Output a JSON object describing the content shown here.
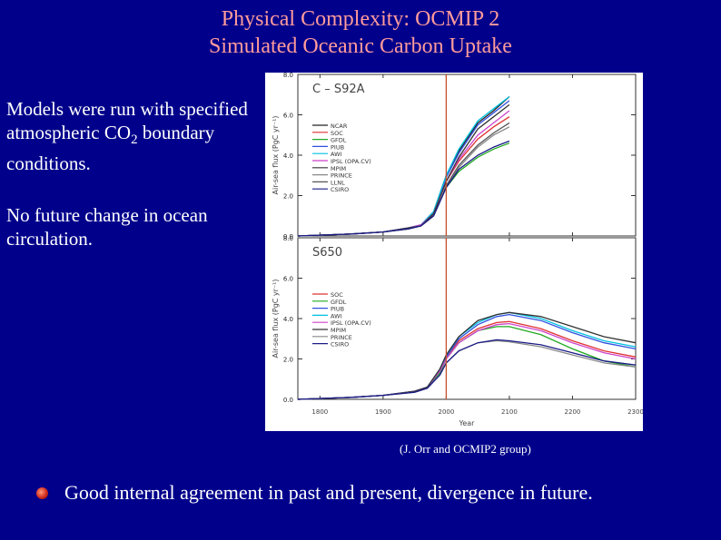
{
  "slide": {
    "title_line1": "Physical Complexity: OCMIP 2",
    "title_line2": "Simulated Oceanic Carbon Uptake",
    "text1_a": "Models were run with specified atmospheric CO",
    "text1_sub": "2",
    "text1_b": " boundary conditions.",
    "text2": "No future change in ocean circulation.",
    "caption": "(J. Orr and OCMIP2 group)",
    "bullet": "Good internal agreement in past and present, divergence in future."
  },
  "colors": {
    "background": "#00008b",
    "title": "#ff9b9b",
    "marker_line": "#c8502a"
  },
  "chart_data": [
    {
      "type": "line",
      "title": "C – S92A",
      "ylabel": "Air-sea flux (PgC yr⁻¹)",
      "ylim": [
        0,
        8
      ],
      "yticks": [
        "0.0",
        "2.0",
        "4.0",
        "6.0",
        "8.0"
      ],
      "xlim": [
        1765,
        2300
      ],
      "marker_year": 2000,
      "legend": [
        "NCAR",
        "SOC",
        "GFDL",
        "PIUB",
        "AWI",
        "IPSL (OPA.CV)",
        "MPIM",
        "PRINCE",
        "LLNL",
        "CSIRO"
      ],
      "series": [
        {
          "name": "NCAR",
          "color": "#222222",
          "x": [
            1765,
            1850,
            1900,
            1940,
            1960,
            1980,
            1990,
            2000,
            2020,
            2050,
            2075,
            2100
          ],
          "y": [
            0,
            0.1,
            0.2,
            0.4,
            0.55,
            1.2,
            2.1,
            3.0,
            4.2,
            5.6,
            6.2,
            6.9
          ]
        },
        {
          "name": "SOC",
          "color": "#e03030",
          "x": [
            1765,
            1850,
            1900,
            1940,
            1960,
            1980,
            1990,
            2000,
            2020,
            2050,
            2075,
            2100
          ],
          "y": [
            0,
            0.1,
            0.2,
            0.4,
            0.5,
            1.1,
            1.9,
            2.7,
            3.7,
            4.8,
            5.4,
            5.9
          ]
        },
        {
          "name": "GFDL",
          "color": "#22aa22",
          "x": [
            1765,
            1850,
            1900,
            1940,
            1960,
            1980,
            1990,
            2000,
            2020,
            2050,
            2075,
            2100
          ],
          "y": [
            0,
            0.1,
            0.2,
            0.35,
            0.5,
            1.0,
            1.7,
            2.4,
            3.2,
            3.9,
            4.3,
            4.6
          ]
        },
        {
          "name": "PIUB",
          "color": "#3050e0",
          "x": [
            1765,
            1850,
            1900,
            1940,
            1960,
            1980,
            1990,
            2000,
            2020,
            2050,
            2075,
            2100
          ],
          "y": [
            0,
            0.1,
            0.2,
            0.4,
            0.55,
            1.2,
            2.0,
            2.9,
            4.1,
            5.5,
            6.1,
            6.7
          ]
        },
        {
          "name": "AWI",
          "color": "#00c0e0",
          "x": [
            1765,
            1850,
            1900,
            1940,
            1960,
            1980,
            1990,
            2000,
            2020,
            2050,
            2075,
            2100
          ],
          "y": [
            0,
            0.1,
            0.2,
            0.4,
            0.55,
            1.2,
            2.1,
            3.0,
            4.3,
            5.7,
            6.3,
            6.9
          ]
        },
        {
          "name": "IPSL (OPA.CV)",
          "color": "#cc44cc",
          "x": [
            1765,
            1850,
            1900,
            1940,
            1960,
            1980,
            1990,
            2000,
            2020,
            2050,
            2075,
            2100
          ],
          "y": [
            0,
            0.1,
            0.2,
            0.4,
            0.55,
            1.1,
            1.9,
            2.7,
            3.8,
            5.0,
            5.6,
            6.2
          ]
        },
        {
          "name": "MPIM",
          "color": "#333333",
          "x": [
            1765,
            1850,
            1900,
            1940,
            1960,
            1980,
            1990,
            2000,
            2020,
            2050,
            2075,
            2100
          ],
          "y": [
            0,
            0.1,
            0.2,
            0.4,
            0.5,
            1.1,
            1.9,
            2.7,
            3.9,
            5.3,
            5.9,
            6.5
          ]
        },
        {
          "name": "PRINCE",
          "color": "#888888",
          "x": [
            1765,
            1850,
            1900,
            1940,
            1960,
            1980,
            1990,
            2000,
            2020,
            2050,
            2075,
            2100
          ],
          "y": [
            0,
            0.1,
            0.2,
            0.35,
            0.5,
            1.0,
            1.7,
            2.4,
            3.4,
            4.4,
            5.0,
            5.4
          ]
        },
        {
          "name": "LLNL",
          "color": "#555555",
          "x": [
            1765,
            1850,
            1900,
            1940,
            1960,
            1980,
            1990,
            2000,
            2020,
            2050,
            2075,
            2100
          ],
          "y": [
            0,
            0.1,
            0.2,
            0.35,
            0.5,
            1.0,
            1.7,
            2.5,
            3.5,
            4.5,
            5.1,
            5.6
          ]
        },
        {
          "name": "CSIRO",
          "color": "#1a1a88",
          "x": [
            1765,
            1850,
            1900,
            1940,
            1960,
            1980,
            1990,
            2000,
            2020,
            2050,
            2075,
            2100
          ],
          "y": [
            0,
            0.1,
            0.2,
            0.35,
            0.5,
            1.0,
            1.7,
            2.4,
            3.3,
            4.0,
            4.4,
            4.7
          ]
        }
      ]
    },
    {
      "type": "line",
      "title": "S650",
      "ylabel": "Air-sea flux (PgC yr⁻¹)",
      "xlabel": "Year",
      "ylim": [
        0,
        8
      ],
      "yticks": [
        "0.0",
        "2.0",
        "4.0",
        "6.0",
        "8.0"
      ],
      "xlim": [
        1765,
        2300
      ],
      "xticks": [
        "1800",
        "1900",
        "2000",
        "2100",
        "2200",
        "2300"
      ],
      "marker_year": 2000,
      "legend": [
        "SOC",
        "GFDL",
        "PIUB",
        "AWI",
        "IPSL (OPA.CV)",
        "MPIM",
        "PRINCE",
        "CSIRO"
      ],
      "series": [
        {
          "name": "SOC",
          "color": "#e03030",
          "x": [
            1765,
            1850,
            1900,
            1950,
            1970,
            1990,
            2000,
            2020,
            2050,
            2080,
            2100,
            2150,
            2200,
            2250,
            2300
          ],
          "y": [
            0,
            0.1,
            0.2,
            0.4,
            0.6,
            1.4,
            2.1,
            2.9,
            3.5,
            3.8,
            3.85,
            3.5,
            2.9,
            2.4,
            2.1
          ]
        },
        {
          "name": "GFDL",
          "color": "#22aa22",
          "x": [
            1765,
            1850,
            1900,
            1950,
            1970,
            1990,
            2000,
            2020,
            2050,
            2080,
            2100,
            2150,
            2200,
            2250,
            2300
          ],
          "y": [
            0,
            0.1,
            0.2,
            0.4,
            0.6,
            1.3,
            2.0,
            2.8,
            3.4,
            3.6,
            3.6,
            3.2,
            2.5,
            1.9,
            1.6
          ]
        },
        {
          "name": "PIUB",
          "color": "#3050e0",
          "x": [
            1765,
            1850,
            1900,
            1950,
            1970,
            1990,
            2000,
            2020,
            2050,
            2080,
            2100,
            2150,
            2200,
            2250,
            2300
          ],
          "y": [
            0,
            0.1,
            0.2,
            0.4,
            0.6,
            1.4,
            2.1,
            3.0,
            3.7,
            4.1,
            4.2,
            3.9,
            3.3,
            2.8,
            2.5
          ]
        },
        {
          "name": "AWI",
          "color": "#00c0e0",
          "x": [
            1765,
            1850,
            1900,
            1950,
            1970,
            1990,
            2000,
            2020,
            2050,
            2080,
            2100,
            2150,
            2200,
            2250,
            2300
          ],
          "y": [
            0,
            0.1,
            0.2,
            0.4,
            0.6,
            1.5,
            2.2,
            3.1,
            3.8,
            4.2,
            4.3,
            4.0,
            3.4,
            2.9,
            2.6
          ]
        },
        {
          "name": "IPSL (OPA.CV)",
          "color": "#cc44cc",
          "x": [
            1765,
            1850,
            1900,
            1950,
            1970,
            1990,
            2000,
            2020,
            2050,
            2080,
            2100,
            2150,
            2200,
            2250,
            2300
          ],
          "y": [
            0,
            0.1,
            0.2,
            0.4,
            0.6,
            1.4,
            2.0,
            2.8,
            3.4,
            3.7,
            3.75,
            3.4,
            2.8,
            2.3,
            2.0
          ]
        },
        {
          "name": "MPIM",
          "color": "#333333",
          "x": [
            1765,
            1850,
            1900,
            1950,
            1970,
            1990,
            2000,
            2020,
            2050,
            2080,
            2100,
            2150,
            2200,
            2250,
            2300
          ],
          "y": [
            0,
            0.1,
            0.2,
            0.4,
            0.6,
            1.5,
            2.2,
            3.1,
            3.9,
            4.2,
            4.3,
            4.1,
            3.6,
            3.1,
            2.8
          ]
        },
        {
          "name": "PRINCE",
          "color": "#888888",
          "x": [
            1765,
            1850,
            1900,
            1950,
            1970,
            1990,
            2000,
            2020,
            2050,
            2080,
            2100,
            2150,
            2200,
            2250,
            2300
          ],
          "y": [
            0,
            0.1,
            0.2,
            0.35,
            0.55,
            1.2,
            1.8,
            2.4,
            2.8,
            2.9,
            2.85,
            2.6,
            2.2,
            1.8,
            1.6
          ]
        },
        {
          "name": "CSIRO",
          "color": "#1a1a88",
          "x": [
            1765,
            1850,
            1900,
            1950,
            1970,
            1990,
            2000,
            2020,
            2050,
            2080,
            2100,
            2150,
            2200,
            2250,
            2300
          ],
          "y": [
            0,
            0.1,
            0.2,
            0.35,
            0.55,
            1.2,
            1.8,
            2.4,
            2.8,
            2.95,
            2.9,
            2.7,
            2.3,
            1.9,
            1.7
          ]
        }
      ]
    }
  ]
}
